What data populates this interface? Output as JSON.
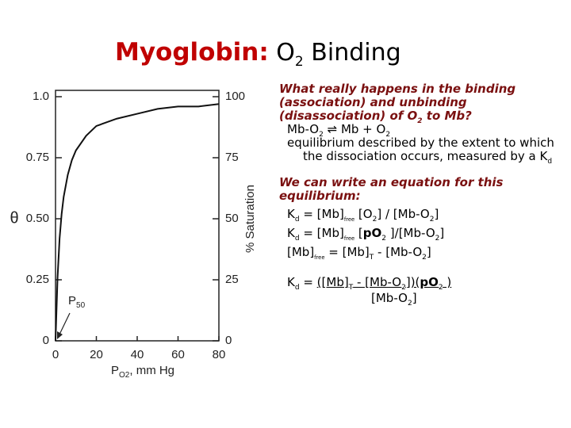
{
  "title": {
    "main": "Myoglobin:",
    "o": "O",
    "sub": "2",
    "rest": " Binding"
  },
  "text": {
    "q1": [
      "What really happens in the binding (association) and unbinding (disassociation) of O",
      "2",
      " to Mb?"
    ],
    "eq1": [
      "Mb-O",
      "2",
      " ⇌ Mb + O",
      "2"
    ],
    "desc": [
      "equilibrium described by the extent to which the dissociation occurs, measured by a K",
      "d"
    ],
    "q2": "We can write an equation for this equilibrium:",
    "eq2": [
      "K",
      "d",
      " = [Mb]",
      "free",
      " [O",
      "2",
      "] / [Mb-O",
      "2",
      "]"
    ],
    "eq3": [
      "K",
      "d",
      " = [Mb]",
      "free",
      " [",
      "pO",
      "2",
      " ]/[Mb-O",
      "2",
      "]"
    ],
    "eq4": [
      "[Mb]",
      "free",
      " = [Mb]",
      "T",
      " - [Mb-O",
      "2",
      "]"
    ],
    "eq5": [
      "K",
      "d",
      " = ",
      "([Mb]",
      "T",
      " - [Mb-O",
      "2",
      "])(",
      "pO",
      "2",
      " )"
    ],
    "eq5den": [
      "[Mb-O",
      "2",
      "]"
    ]
  },
  "chart_data": {
    "type": "line",
    "x_label": [
      "P",
      "O2",
      ", mm Hg"
    ],
    "y_label": "θ",
    "y2_label": "% Saturation",
    "annotation": [
      "P",
      "50"
    ],
    "x": [
      0,
      1,
      2,
      3,
      4,
      6,
      8,
      10,
      15,
      20,
      30,
      40,
      50,
      60,
      70,
      80
    ],
    "series": [
      {
        "values": [
          0,
          0.26,
          0.42,
          0.52,
          0.59,
          0.68,
          0.74,
          0.78,
          0.84,
          0.88,
          0.91,
          0.93,
          0.95,
          0.96,
          0.96,
          0.97
        ],
        "color": "#111111"
      }
    ],
    "xlim": [
      0,
      80
    ],
    "xticks": [
      0,
      20,
      40,
      60,
      80
    ],
    "ylim": [
      0,
      1
    ],
    "yticks": [
      0,
      0.25,
      {
        "value": 0.5,
        "label": "0.50"
      },
      0.75,
      {
        "value": 1,
        "label": "1.0"
      }
    ],
    "y2lim": [
      0,
      100
    ],
    "y2ticks": [
      0,
      25,
      50,
      75,
      100
    ]
  }
}
